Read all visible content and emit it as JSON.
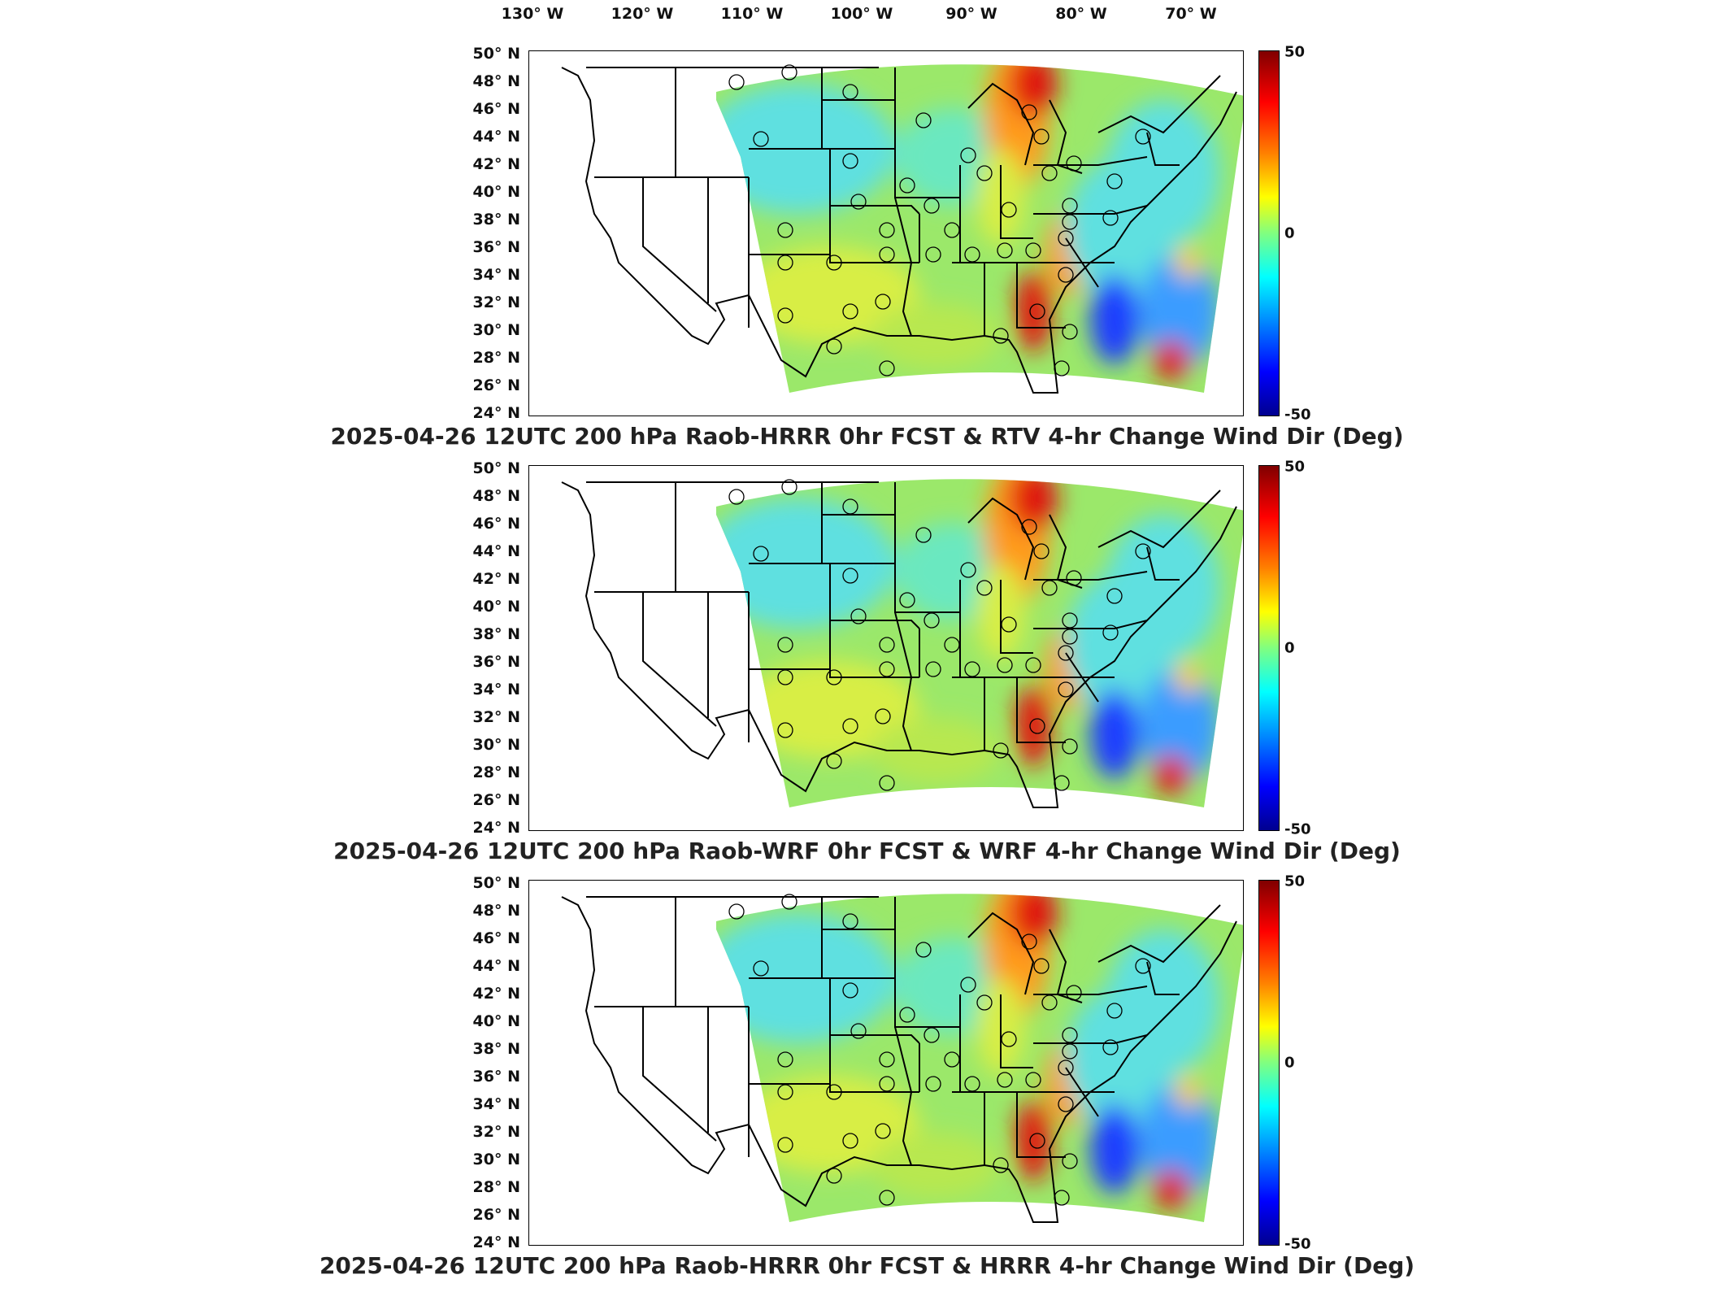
{
  "longitude_labels": [
    "130° W",
    "120° W",
    "110° W",
    "100° W",
    "90° W",
    "80° W",
    "70° W"
  ],
  "latitude_labels": [
    "50° N",
    "48° N",
    "46° N",
    "44° N",
    "42° N",
    "40° N",
    "38° N",
    "36° N",
    "34° N",
    "32° N",
    "30° N",
    "28° N",
    "26° N",
    "24° N"
  ],
  "colorbar": {
    "max_label": "50",
    "mid_label": "0",
    "min_label": "-50"
  },
  "panels": [
    {
      "title": "2025-04-26 12UTC 200 hPa Raob-HRRR 0hr FCST & RTV 4-hr Change Wind Dir (Deg)"
    },
    {
      "title": "2025-04-26 12UTC 200 hPa Raob-WRF 0hr FCST & WRF 4-hr Change Wind Dir (Deg)"
    },
    {
      "title": "2025-04-26 12UTC 200 hPa Raob-HRRR 0hr FCST & HRRR 4-hr Change Wind Dir (Deg)"
    }
  ],
  "colors": {
    "field_green": "#9be86a",
    "field_cyan": "#5ee0e0",
    "field_yellow": "#d8ee44",
    "field_orange": "#ff9a1a",
    "field_red": "#e0150c",
    "field_blue": "#1a3cff"
  }
}
